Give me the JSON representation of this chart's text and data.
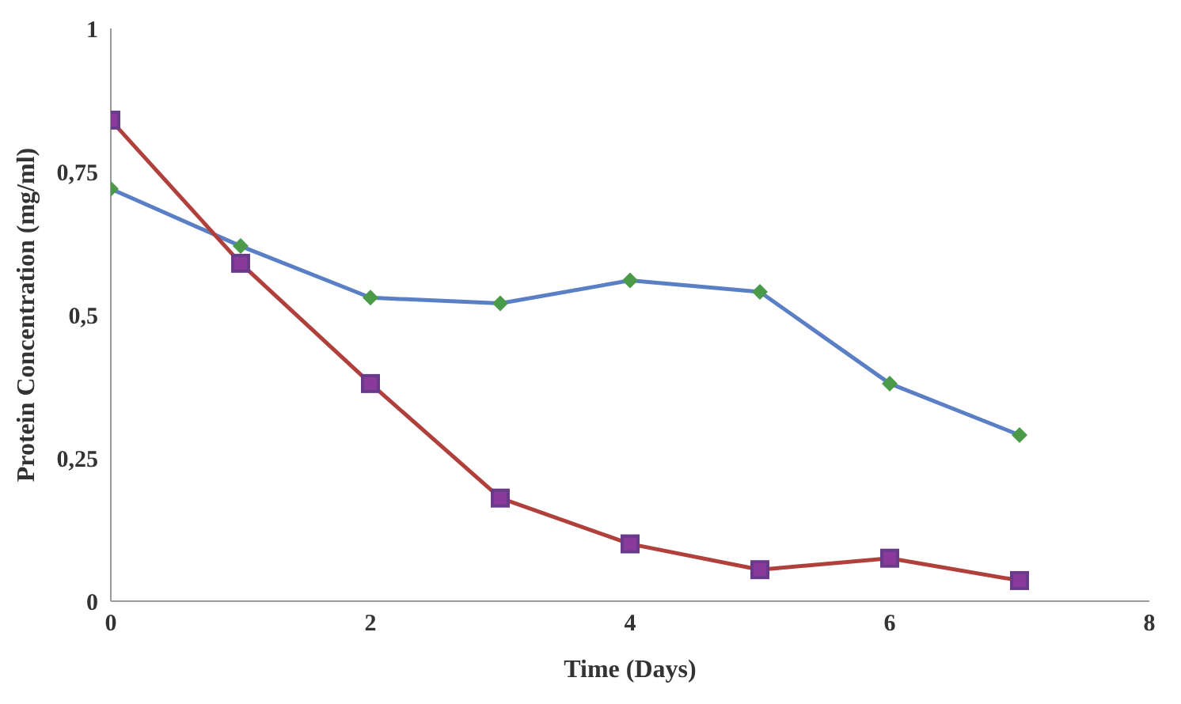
{
  "chart_data": {
    "type": "line",
    "xlabel": "Time (Days)",
    "ylabel": "Protein Concentration (mg/ml)",
    "x": [
      0,
      1,
      2,
      3,
      4,
      5,
      6,
      7
    ],
    "series": [
      {
        "color": "#5b7fc4",
        "marker": "diamond",
        "values": [
          0.72,
          0.62,
          0.53,
          0.52,
          0.56,
          0.54,
          0.38,
          0.29
        ]
      },
      {
        "color": "#b0403c",
        "marker": "square",
        "values": [
          0.84,
          0.59,
          0.38,
          0.18,
          0.1,
          0.055,
          0.075,
          0.036
        ]
      }
    ],
    "xlim": [
      0,
      8
    ],
    "xticks": [
      0,
      2,
      4,
      6,
      8
    ],
    "ylim": [
      0,
      1
    ],
    "yticks": [
      0,
      {
        "value": 0.25,
        "label": "0,25"
      },
      {
        "value": 0.5,
        "label": "0,5"
      },
      {
        "value": 0.75,
        "label": "0,75"
      },
      1
    ],
    "grid": false,
    "legend": false
  }
}
